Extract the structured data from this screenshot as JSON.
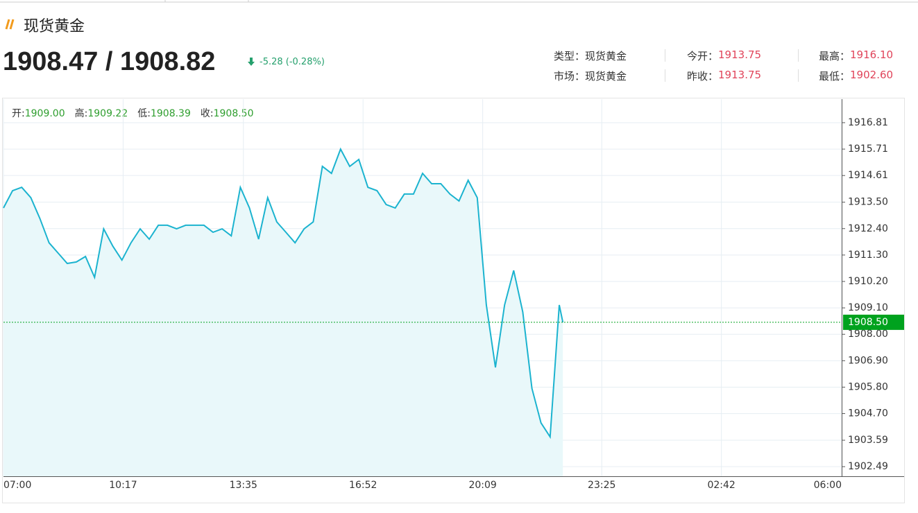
{
  "header": {
    "title": "现货黄金",
    "price": "1908.47 / 1908.82",
    "change": "-5.28 (-0.28%)"
  },
  "info": [
    [
      {
        "label": "类型：",
        "value": "现货黄金"
      },
      {
        "label": "今开：",
        "value": "1913.75"
      },
      {
        "label": "最高：",
        "value": "1916.10"
      }
    ],
    [
      {
        "label": "市场：",
        "value": "现货黄金"
      },
      {
        "label": "昨收：",
        "value": "1913.75"
      },
      {
        "label": "最低：",
        "value": "1902.60"
      }
    ]
  ],
  "ohlc": [
    {
      "label": "开:",
      "value": "1909.00"
    },
    {
      "label": "高:",
      "value": "1909.22"
    },
    {
      "label": "低:",
      "value": "1908.39"
    },
    {
      "label": "收:",
      "value": "1908.50"
    }
  ],
  "chart_data": {
    "type": "line",
    "color": "#1bb3cf",
    "fill": "#e9f8fa",
    "grid": true,
    "x": [
      "07:00",
      "07:15",
      "07:30",
      "07:45",
      "08:00",
      "08:15",
      "08:30",
      "08:45",
      "09:00",
      "09:15",
      "09:30",
      "09:45",
      "10:00",
      "10:15",
      "10:30",
      "10:45",
      "11:00",
      "11:15",
      "11:30",
      "11:45",
      "12:00",
      "12:15",
      "12:30",
      "12:45",
      "13:00",
      "13:15",
      "13:30",
      "13:45",
      "14:00",
      "14:15",
      "14:30",
      "14:45",
      "15:00",
      "15:15",
      "15:30",
      "15:45",
      "16:00",
      "16:15",
      "16:30",
      "16:45",
      "17:00",
      "17:15",
      "17:30",
      "17:45",
      "18:00",
      "18:15",
      "18:30",
      "18:45",
      "19:00",
      "19:15",
      "19:30",
      "19:45",
      "20:00",
      "20:15",
      "20:30",
      "20:45",
      "21:00",
      "21:15",
      "21:30",
      "21:45",
      "22:00",
      "22:15",
      "22:21"
    ],
    "values": [
      1913.26,
      1913.98,
      1914.12,
      1913.69,
      1912.82,
      1911.81,
      1911.38,
      1910.95,
      1911.01,
      1911.24,
      1910.37,
      1912.39,
      1911.67,
      1911.09,
      1911.81,
      1912.39,
      1911.96,
      1912.54,
      1912.54,
      1912.39,
      1912.54,
      1912.54,
      1912.54,
      1912.25,
      1912.39,
      1912.1,
      1914.12,
      1913.26,
      1911.96,
      1913.69,
      1912.68,
      1912.25,
      1911.81,
      1912.39,
      1912.68,
      1914.99,
      1914.7,
      1915.71,
      1914.99,
      1915.28,
      1914.12,
      1913.98,
      1913.4,
      1913.26,
      1913.84,
      1913.84,
      1914.7,
      1914.27,
      1914.27,
      1913.84,
      1913.55,
      1914.41,
      1913.69,
      1909.22,
      1906.62,
      1909.22,
      1910.66,
      1908.93,
      1905.75,
      1904.31,
      1903.73,
      1909.22,
      1908.5
    ],
    "xlim": [
      "07:00",
      "06:00"
    ],
    "xticks": [
      "07:00",
      "10:17",
      "13:35",
      "16:52",
      "20:09",
      "23:25",
      "02:42",
      "06:00"
    ],
    "ylim": [
      1902.09,
      1917.79
    ],
    "yticks": [
      {
        "value": 1902.49,
        "label": "1902.49"
      },
      {
        "value": 1903.59,
        "label": "1903.59"
      },
      {
        "value": 1904.7,
        "label": "1904.70"
      },
      {
        "value": 1905.8,
        "label": "1905.80"
      },
      {
        "value": 1906.9,
        "label": "1906.90"
      },
      {
        "value": 1908,
        "label": "1908.00"
      },
      {
        "value": 1909.1,
        "label": "1909.10"
      },
      {
        "value": 1910.2,
        "label": "1910.20"
      },
      {
        "value": 1911.3,
        "label": "1911.30"
      },
      {
        "value": 1912.4,
        "label": "1912.40"
      },
      {
        "value": 1913.5,
        "label": "1913.50"
      },
      1914.61,
      1915.71,
      1916.81
    ],
    "last_price": {
      "value": 1908.5,
      "label": "1908.50",
      "color": "#00a21e"
    }
  }
}
